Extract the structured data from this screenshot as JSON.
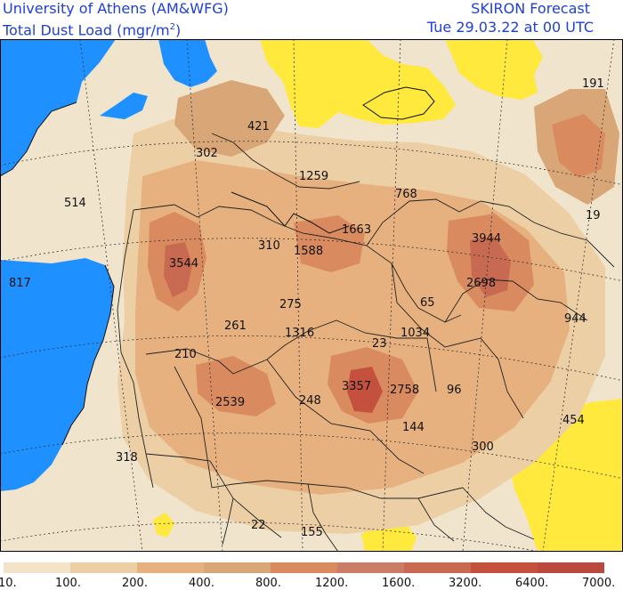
{
  "header": {
    "institution": "University of Athens (AM&WFG)",
    "product_prefix": "Total Dust Load (mgr/m",
    "product_exponent": "2",
    "product_suffix": ")",
    "model": "SKIRON Forecast",
    "valid_time": "Tue 29.03.22 at 00 UTC"
  },
  "colors": {
    "sea": "#1e90ff",
    "low_dust": "#ffe93c",
    "header_text": "#1f3fd6"
  },
  "map_labels": [
    {
      "text": "191"
    },
    {
      "text": "421"
    },
    {
      "text": "302"
    },
    {
      "text": "1259"
    },
    {
      "text": "768"
    },
    {
      "text": "514"
    },
    {
      "text": "1663"
    },
    {
      "text": "19"
    },
    {
      "text": "310"
    },
    {
      "text": "1588"
    },
    {
      "text": "3944"
    },
    {
      "text": "3544"
    },
    {
      "text": "817"
    },
    {
      "text": "2698"
    },
    {
      "text": "275"
    },
    {
      "text": "65"
    },
    {
      "text": "944"
    },
    {
      "text": "261"
    },
    {
      "text": "1316"
    },
    {
      "text": "1034"
    },
    {
      "text": "23"
    },
    {
      "text": "210"
    },
    {
      "text": "3357"
    },
    {
      "text": "2758"
    },
    {
      "text": "96"
    },
    {
      "text": "2539"
    },
    {
      "text": "248"
    },
    {
      "text": "454"
    },
    {
      "text": "144"
    },
    {
      "text": "300"
    },
    {
      "text": "318"
    },
    {
      "text": "22"
    },
    {
      "text": "155"
    }
  ],
  "legend": {
    "colors": [
      "#f3e3c9",
      "#eccfa5",
      "#e6b17f",
      "#d9a777",
      "#d98a5e",
      "#c97d67",
      "#c86a52",
      "#c4503e",
      "#b94a3d"
    ],
    "labels": [
      "10.",
      "100.",
      "200.",
      "400.",
      "800.",
      "1200.",
      "1600.",
      "3200.",
      "6400.",
      "7000."
    ]
  }
}
